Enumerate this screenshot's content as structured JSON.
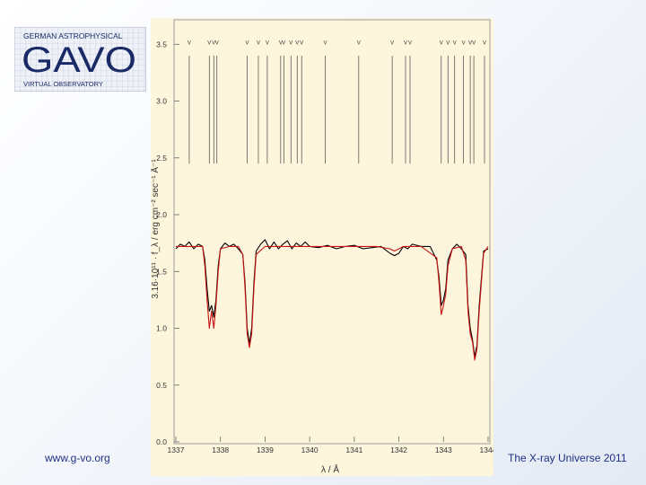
{
  "logo": {
    "line1": "GERMAN ASTROPHYSICAL",
    "line2": "GAVO",
    "line3": "VIRTUAL OBSERVATORY"
  },
  "footer": {
    "url": "www.g-vo.org",
    "talk": "The X-ray Universe 2011"
  },
  "colors": {
    "plot_bg": "#fdf6dd",
    "observed": "#000000",
    "model": "#c81414",
    "footer_text": "#1f2f86",
    "logo_text": "#1a2a66"
  },
  "chart_data": {
    "type": "line",
    "xlabel": "λ / Å",
    "ylabel": "3.16·10¹¹ · f_λ / erg cm⁻² sec⁻¹ Å⁻¹",
    "xlim": [
      1337,
      1344
    ],
    "ylim": [
      0,
      3.7
    ],
    "x_ticks": [
      "1337",
      "1338",
      "1339",
      "1340",
      "1341",
      "1342",
      "1343",
      "1344"
    ],
    "y_ticks": [
      "0.0",
      "0.5",
      "1.0",
      "1.5",
      "2.0",
      "2.5",
      "3.0",
      "3.5"
    ],
    "line_ids": [
      {
        "x": 1337.3,
        "label": "V"
      },
      {
        "x": 1337.75,
        "label": "V"
      },
      {
        "x": 1337.85,
        "label": "V"
      },
      {
        "x": 1337.92,
        "label": "V"
      },
      {
        "x": 1338.6,
        "label": "V"
      },
      {
        "x": 1338.85,
        "label": "V"
      },
      {
        "x": 1339.05,
        "label": "V"
      },
      {
        "x": 1339.35,
        "label": "V"
      },
      {
        "x": 1339.42,
        "label": "V"
      },
      {
        "x": 1339.58,
        "label": "V"
      },
      {
        "x": 1339.72,
        "label": "V"
      },
      {
        "x": 1339.82,
        "label": "V"
      },
      {
        "x": 1340.35,
        "label": "V"
      },
      {
        "x": 1341.1,
        "label": "V"
      },
      {
        "x": 1341.85,
        "label": "V"
      },
      {
        "x": 1342.15,
        "label": "V"
      },
      {
        "x": 1342.25,
        "label": "V"
      },
      {
        "x": 1342.95,
        "label": "V"
      },
      {
        "x": 1343.1,
        "label": "V"
      },
      {
        "x": 1343.25,
        "label": "V"
      },
      {
        "x": 1343.45,
        "label": "V"
      },
      {
        "x": 1343.6,
        "label": "V"
      },
      {
        "x": 1343.68,
        "label": "V"
      },
      {
        "x": 1343.92,
        "label": "V"
      }
    ],
    "series": [
      {
        "color": "#000000",
        "x": [
          1337.0,
          1337.1,
          1337.2,
          1337.3,
          1337.4,
          1337.5,
          1337.6,
          1337.65,
          1337.7,
          1337.75,
          1337.8,
          1337.85,
          1337.9,
          1337.95,
          1338.0,
          1338.1,
          1338.2,
          1338.3,
          1338.4,
          1338.5,
          1338.55,
          1338.6,
          1338.65,
          1338.7,
          1338.75,
          1338.8,
          1338.9,
          1339.0,
          1339.1,
          1339.2,
          1339.3,
          1339.4,
          1339.5,
          1339.6,
          1339.7,
          1339.8,
          1339.9,
          1340.0,
          1340.2,
          1340.4,
          1340.6,
          1340.8,
          1341.0,
          1341.2,
          1341.4,
          1341.6,
          1341.8,
          1341.9,
          1342.0,
          1342.1,
          1342.2,
          1342.3,
          1342.5,
          1342.7,
          1342.85,
          1342.9,
          1342.95,
          1343.0,
          1343.05,
          1343.1,
          1343.2,
          1343.3,
          1343.4,
          1343.5,
          1343.55,
          1343.6,
          1343.65,
          1343.7,
          1343.75,
          1343.8,
          1343.9,
          1344.0
        ],
        "y": [
          1.7,
          1.74,
          1.72,
          1.76,
          1.7,
          1.74,
          1.72,
          1.6,
          1.35,
          1.15,
          1.2,
          1.1,
          1.25,
          1.55,
          1.7,
          1.75,
          1.72,
          1.74,
          1.7,
          1.65,
          1.4,
          1.0,
          0.86,
          1.0,
          1.4,
          1.68,
          1.74,
          1.78,
          1.7,
          1.76,
          1.7,
          1.74,
          1.77,
          1.7,
          1.75,
          1.72,
          1.76,
          1.72,
          1.71,
          1.73,
          1.7,
          1.72,
          1.73,
          1.7,
          1.71,
          1.72,
          1.66,
          1.64,
          1.66,
          1.72,
          1.7,
          1.74,
          1.72,
          1.72,
          1.6,
          1.45,
          1.2,
          1.25,
          1.35,
          1.6,
          1.7,
          1.74,
          1.7,
          1.65,
          1.2,
          1.0,
          0.9,
          0.75,
          0.85,
          1.2,
          1.68,
          1.7
        ]
      },
      {
        "color": "#c81414",
        "x": [
          1337.0,
          1337.2,
          1337.4,
          1337.6,
          1337.65,
          1337.7,
          1337.75,
          1337.8,
          1337.85,
          1337.9,
          1337.95,
          1338.0,
          1338.2,
          1338.4,
          1338.5,
          1338.55,
          1338.6,
          1338.65,
          1338.7,
          1338.75,
          1338.8,
          1339.0,
          1339.2,
          1339.4,
          1339.6,
          1339.8,
          1340.0,
          1340.5,
          1341.0,
          1341.5,
          1341.8,
          1341.9,
          1342.0,
          1342.1,
          1342.5,
          1342.85,
          1342.9,
          1342.95,
          1343.0,
          1343.05,
          1343.1,
          1343.2,
          1343.4,
          1343.5,
          1343.55,
          1343.6,
          1343.65,
          1343.7,
          1343.75,
          1343.8,
          1343.9,
          1344.0
        ],
        "y": [
          1.72,
          1.72,
          1.72,
          1.72,
          1.55,
          1.25,
          1.0,
          1.15,
          1.0,
          1.2,
          1.5,
          1.7,
          1.72,
          1.72,
          1.65,
          1.35,
          0.95,
          0.83,
          0.95,
          1.35,
          1.65,
          1.72,
          1.72,
          1.72,
          1.72,
          1.72,
          1.72,
          1.72,
          1.72,
          1.72,
          1.7,
          1.68,
          1.7,
          1.72,
          1.72,
          1.62,
          1.4,
          1.12,
          1.2,
          1.3,
          1.55,
          1.7,
          1.72,
          1.6,
          1.15,
          0.95,
          0.88,
          0.72,
          0.82,
          1.15,
          1.66,
          1.72
        ]
      }
    ]
  }
}
